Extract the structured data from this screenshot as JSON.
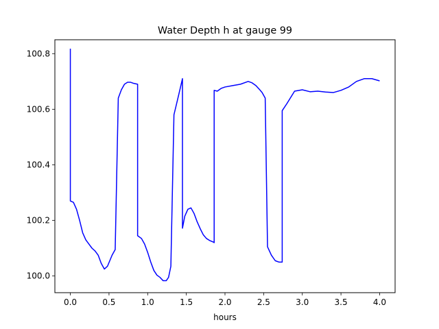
{
  "chart_data": {
    "type": "line",
    "title": "Water Depth h at gauge 99",
    "xlabel": "hours",
    "ylabel": "",
    "xlim": [
      -0.2,
      4.2
    ],
    "ylim": [
      99.94,
      100.85
    ],
    "xticks": [
      0.0,
      0.5,
      1.0,
      1.5,
      2.0,
      2.5,
      3.0,
      3.5,
      4.0
    ],
    "xtick_labels": [
      "0.0",
      "0.5",
      "1.0",
      "1.5",
      "2.0",
      "2.5",
      "3.0",
      "3.5",
      "4.0"
    ],
    "yticks": [
      100.0,
      100.2,
      100.4,
      100.6,
      100.8
    ],
    "ytick_labels": [
      "100.0",
      "100.2",
      "100.4",
      "100.6",
      "100.8"
    ],
    "grid": false,
    "legend": "none",
    "series": [
      {
        "color": "#0000ff",
        "x": [
          0.0,
          0.0,
          0.04,
          0.08,
          0.12,
          0.16,
          0.2,
          0.24,
          0.28,
          0.32,
          0.36,
          0.4,
          0.44,
          0.48,
          0.51,
          0.54,
          0.58,
          0.62,
          0.62,
          0.66,
          0.7,
          0.74,
          0.78,
          0.82,
          0.87,
          0.87,
          0.92,
          0.96,
          1.0,
          1.04,
          1.08,
          1.12,
          1.16,
          1.2,
          1.24,
          1.27,
          1.3,
          1.34,
          1.34,
          1.4,
          1.45,
          1.45,
          1.48,
          1.52,
          1.56,
          1.6,
          1.64,
          1.68,
          1.72,
          1.76,
          1.8,
          1.85,
          1.86,
          1.86,
          1.9,
          1.95,
          2.0,
          2.1,
          2.2,
          2.3,
          2.35,
          2.4,
          2.45,
          2.48,
          2.52,
          2.55,
          2.55,
          2.6,
          2.65,
          2.7,
          2.74,
          2.74,
          2.8,
          2.9,
          3.0,
          3.1,
          3.2,
          3.3,
          3.4,
          3.5,
          3.6,
          3.7,
          3.8,
          3.9,
          4.0
        ],
        "y": [
          100.818,
          100.27,
          100.265,
          100.24,
          100.2,
          100.155,
          100.13,
          100.115,
          100.1,
          100.09,
          100.075,
          100.045,
          100.025,
          100.035,
          100.055,
          100.075,
          100.095,
          100.64,
          100.64,
          100.67,
          100.69,
          100.697,
          100.697,
          100.693,
          100.69,
          100.145,
          100.135,
          100.115,
          100.085,
          100.05,
          100.02,
          100.003,
          99.995,
          99.983,
          99.983,
          99.995,
          100.035,
          100.58,
          100.58,
          100.65,
          100.71,
          100.172,
          100.215,
          100.24,
          100.245,
          100.225,
          100.195,
          100.17,
          100.148,
          100.135,
          100.128,
          100.122,
          100.12,
          100.668,
          100.665,
          100.675,
          100.68,
          100.685,
          100.69,
          100.7,
          100.695,
          100.685,
          100.67,
          100.66,
          100.64,
          100.105,
          100.105,
          100.075,
          100.055,
          100.05,
          100.05,
          100.595,
          100.62,
          100.665,
          100.67,
          100.663,
          100.665,
          100.662,
          100.66,
          100.668,
          100.68,
          100.7,
          100.71,
          100.71,
          100.702
        ]
      }
    ]
  }
}
